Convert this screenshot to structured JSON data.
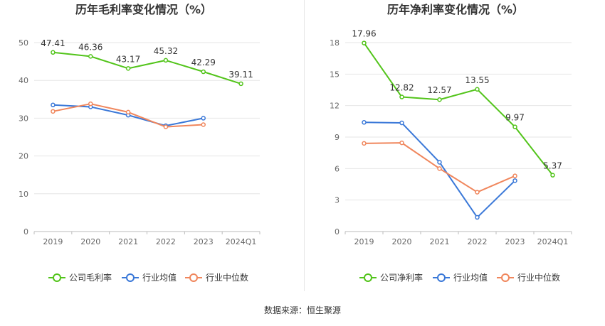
{
  "chart_data": [
    {
      "type": "line",
      "title": "历年毛利率变化情况（%）",
      "categories": [
        "2019",
        "2020",
        "2021",
        "2022",
        "2023",
        "2024Q1"
      ],
      "yticks": [
        "0",
        "10",
        "20",
        "30",
        "40",
        "50"
      ],
      "ylim": [
        0,
        50
      ],
      "series": [
        {
          "name": "公司毛利率",
          "color": "#52c41a",
          "values": [
            47.41,
            46.36,
            43.17,
            45.32,
            42.29,
            39.11
          ],
          "labels": [
            "47.41",
            "46.36",
            "43.17",
            "45.32",
            "42.29",
            "39.11"
          ]
        },
        {
          "name": "行业均值",
          "color": "#3a78d8",
          "values": [
            33.5,
            33.0,
            30.8,
            28.0,
            30.0,
            null
          ],
          "labels": null
        },
        {
          "name": "行业中位数",
          "color": "#f0865c",
          "values": [
            31.8,
            33.8,
            31.6,
            27.7,
            28.3,
            null
          ],
          "labels": null
        }
      ]
    },
    {
      "type": "line",
      "title": "历年净利率变化情况（%）",
      "categories": [
        "2019",
        "2020",
        "2021",
        "2022",
        "2023",
        "2024Q1"
      ],
      "yticks": [
        "0",
        "3",
        "6",
        "9",
        "12",
        "15",
        "18"
      ],
      "ylim": [
        0,
        18
      ],
      "series": [
        {
          "name": "公司净利率",
          "color": "#52c41a",
          "values": [
            17.96,
            12.82,
            12.57,
            13.55,
            9.97,
            5.37
          ],
          "labels": [
            "17.96",
            "12.82",
            "12.57",
            "13.55",
            "9.97",
            "5.37"
          ]
        },
        {
          "name": "行业均值",
          "color": "#3a78d8",
          "values": [
            10.4,
            10.35,
            6.6,
            1.35,
            4.85,
            null
          ],
          "labels": null
        },
        {
          "name": "行业中位数",
          "color": "#f0865c",
          "values": [
            8.4,
            8.45,
            6.0,
            3.75,
            5.3,
            null
          ],
          "labels": null
        }
      ]
    }
  ],
  "footer": {
    "source": "数据来源：恒生聚源"
  }
}
